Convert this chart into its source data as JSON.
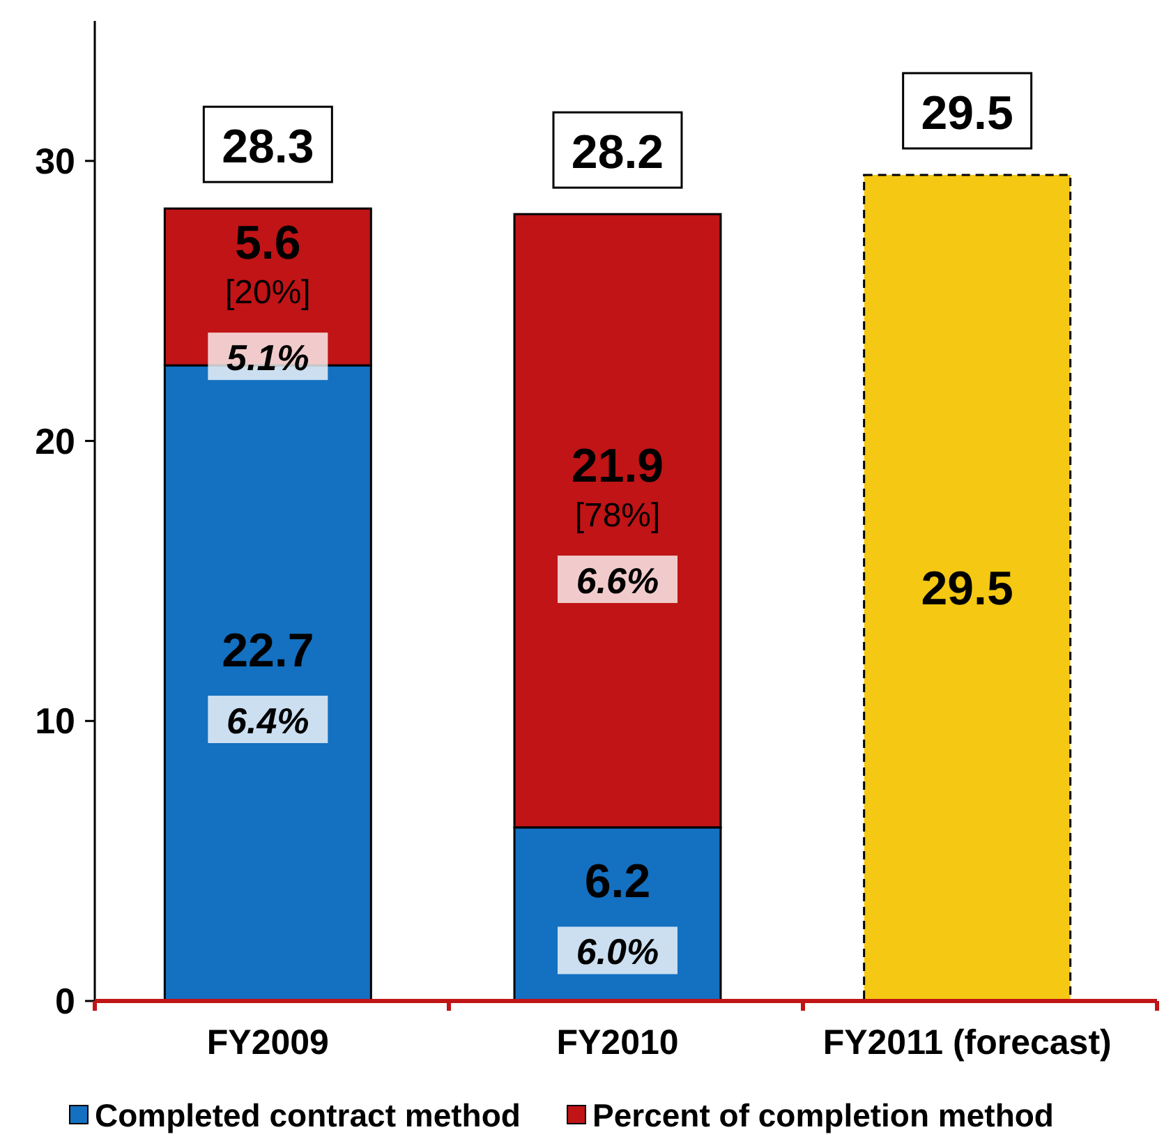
{
  "chart_data": {
    "type": "bar",
    "stacked": true,
    "categories": [
      "FY2009",
      "FY2010",
      "FY2011 (forecast)"
    ],
    "series": [
      {
        "name": "Completed contract method",
        "color": "#1470c0",
        "values": [
          22.7,
          6.2,
          null
        ],
        "value_labels": [
          "22.7\n6.4%",
          "6.2\n6.0%",
          null
        ]
      },
      {
        "name": "Percent of completion method",
        "color": "#c01416",
        "values": [
          5.6,
          21.9,
          null
        ],
        "value_labels": [
          "5.6\n[20%]\n5.1%",
          "21.9\n[78%]\n6.6%",
          null
        ]
      },
      {
        "color": "#f4c813",
        "values": [
          null,
          null,
          29.5
        ],
        "value_labels": [
          null,
          null,
          "29.5"
        ],
        "line_style": "dashed"
      }
    ],
    "totals": [
      "28.3",
      "28.2",
      "29.5"
    ],
    "ylim": [
      0,
      35
    ],
    "yticks": [
      0,
      10,
      20,
      30
    ],
    "grid": false,
    "legend": "bottom"
  }
}
